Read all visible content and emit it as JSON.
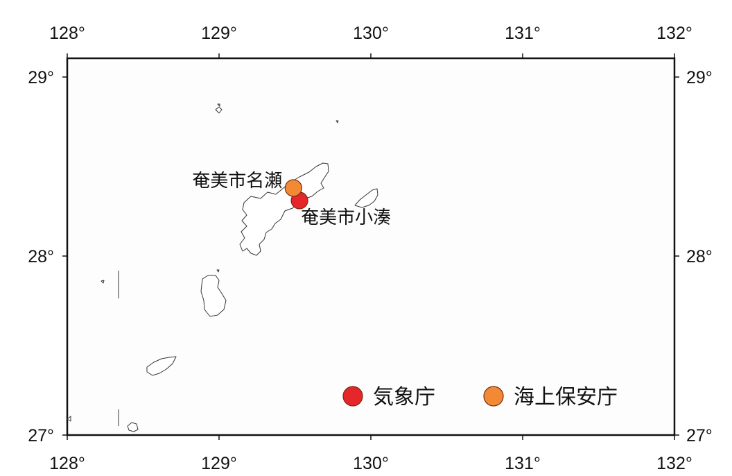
{
  "map": {
    "lon_range": [
      128,
      132
    ],
    "lat_range": [
      27,
      29.1
    ],
    "lon_ticks": [
      {
        "value": 128,
        "label": "128°"
      },
      {
        "value": 129,
        "label": "129°"
      },
      {
        "value": 130,
        "label": "130°"
      },
      {
        "value": 131,
        "label": "131°"
      },
      {
        "value": 132,
        "label": "132°"
      }
    ],
    "lat_ticks": [
      {
        "value": 29,
        "label": "29°"
      },
      {
        "value": 28,
        "label": "28°"
      },
      {
        "value": 27,
        "label": "27°"
      }
    ],
    "stations": [
      {
        "name": "奄美市名瀬",
        "lon": 129.49,
        "lat": 28.38,
        "agency": "coast_guard",
        "label_side": "left"
      },
      {
        "name": "奄美市小湊",
        "lon": 129.53,
        "lat": 28.31,
        "agency": "jma",
        "label_side": "below-right"
      }
    ],
    "legend": {
      "position": "bottom-right",
      "items": [
        {
          "key": "jma",
          "label": "気象庁",
          "color": "#e5262b"
        },
        {
          "key": "coast_guard",
          "label": "海上保安庁",
          "color": "#f28a35"
        }
      ]
    },
    "colors": {
      "frame": "#111111",
      "coastline": "#333333",
      "marker_outline": "#7a2a10"
    }
  }
}
